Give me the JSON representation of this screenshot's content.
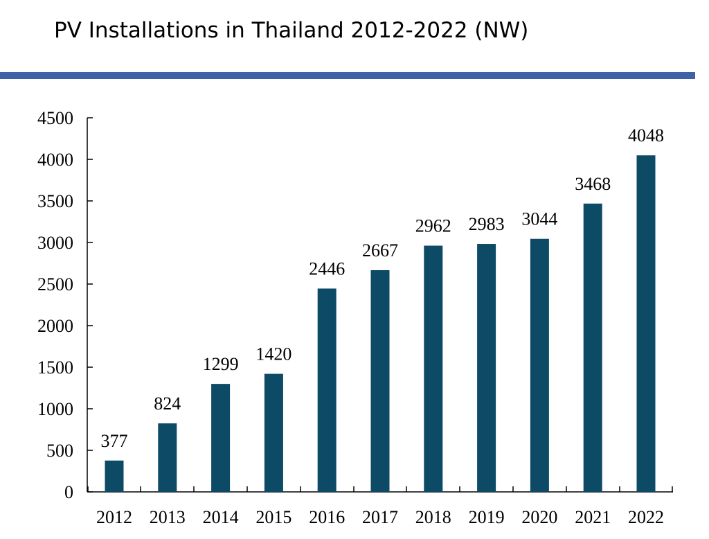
{
  "page": {
    "title": "PV Installations in Thailand 2012-2022 (NW)"
  },
  "colors": {
    "bar": "#0c4a66",
    "title_rule": "#3f62a6",
    "axis": "#000000"
  },
  "chart_data": {
    "type": "bar",
    "title": "PV Installations in Thailand 2012-2022 (NW)",
    "xlabel": "",
    "ylabel": "",
    "categories": [
      "2012",
      "2013",
      "2014",
      "2015",
      "2016",
      "2017",
      "2018",
      "2019",
      "2020",
      "2021",
      "2022"
    ],
    "values": [
      377,
      824,
      1299,
      1420,
      2446,
      2667,
      2962,
      2983,
      3044,
      3468,
      4048
    ],
    "data_labels": [
      "377",
      "824",
      "1299",
      "1420",
      "2446",
      "2667",
      "2962",
      "2983",
      "3044",
      "3468",
      "4048"
    ],
    "ylim": [
      0,
      4500
    ],
    "yticks": [
      0,
      500,
      1000,
      1500,
      2000,
      2500,
      3000,
      3500,
      4000,
      4500
    ],
    "ytick_labels": [
      "0",
      "500",
      "1000",
      "1500",
      "2000",
      "2500",
      "3000",
      "3500",
      "4000",
      "4500"
    ],
    "grid": false,
    "legend": "none"
  }
}
